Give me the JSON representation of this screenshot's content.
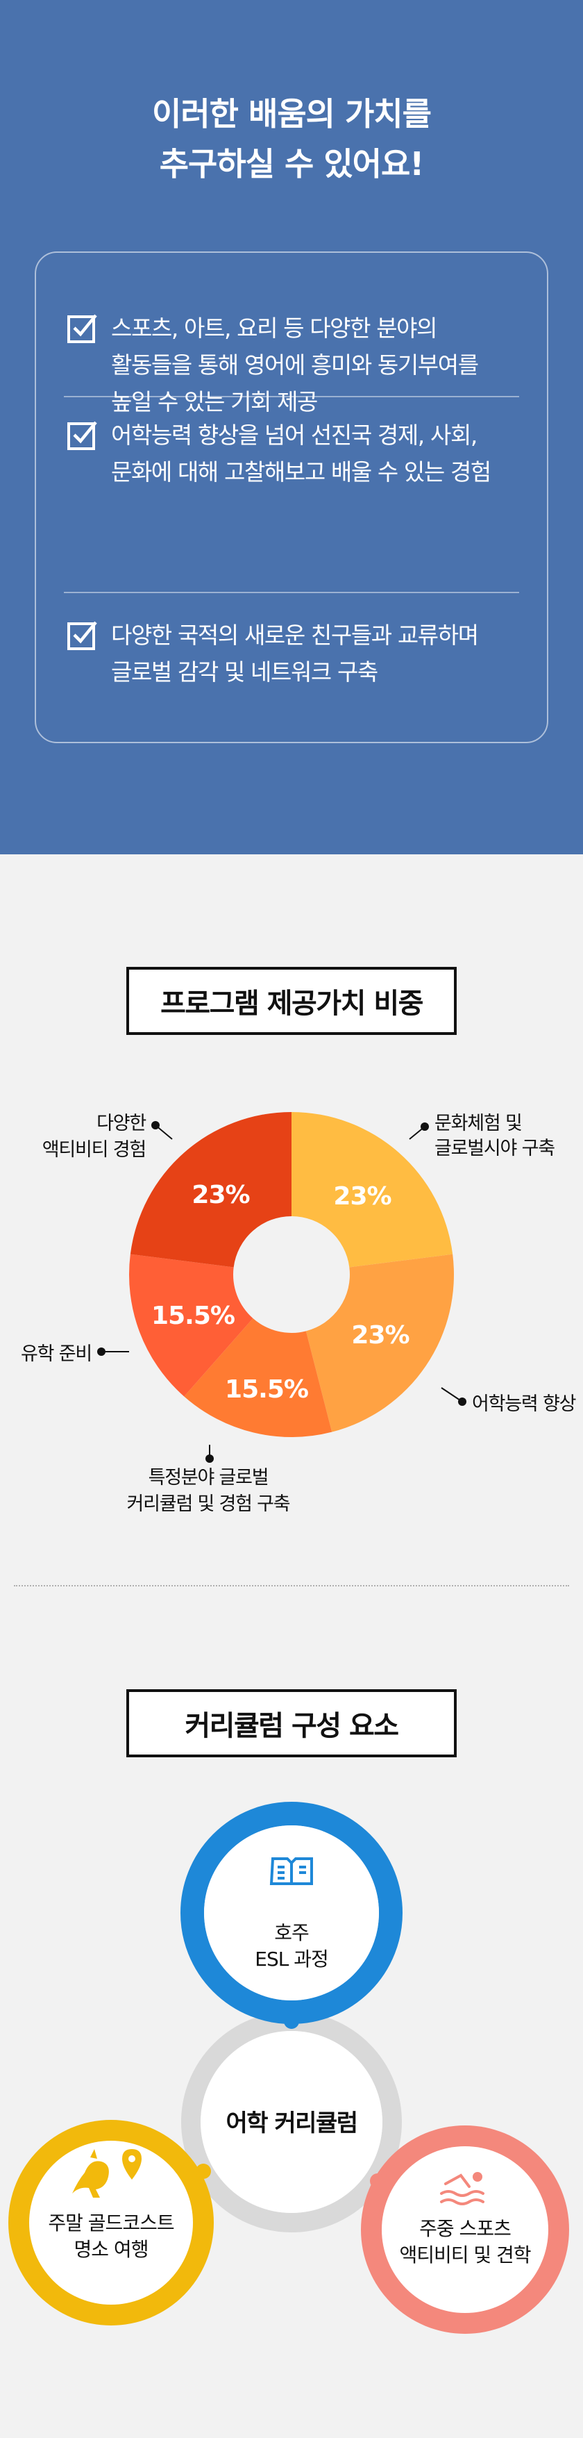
{
  "hero": {
    "line1_pre": "이러한 ",
    "line1_bold": "배움의 가치",
    "line1_post": "를",
    "line2": "추구하실 수 있어요!"
  },
  "values": [
    {
      "lines": [
        "스포츠, 아트, 요리 등 다양한 분야의",
        "활동들을 통해 영어에 흥미와 동기부여를",
        "높일 수 있는 기회 제공"
      ],
      "icon": "checkbox-icon"
    },
    {
      "lines": [
        "어학능력 향상을 넘어 선진국 경제, 사회,",
        "문화에 대해 고찰해보고 배울 수 있는 경험"
      ],
      "icon": "checkbox-icon"
    },
    {
      "lines": [
        "다양한 국적의 새로운 친구들과 교류하며",
        "글로벌 감각 및 네트워크 구축"
      ],
      "icon": "checkbox-icon"
    }
  ],
  "chart_section": {
    "title": "프로그램 제공가치 비중"
  },
  "chart_data": {
    "type": "pie",
    "donut": true,
    "categories": [
      "문화체험 및 글로벌시야 구축",
      "어학능력 향상",
      "특정분야 글로벌 커리큘럼 및 경험 구축",
      "유학 준비",
      "다양한 액티비티 경험"
    ],
    "values": [
      23,
      23,
      15.5,
      15.5,
      23
    ],
    "value_labels": [
      "23%",
      "23%",
      "15.5%",
      "15.5%",
      "23%"
    ],
    "colors": [
      "#ffbc42",
      "#ffa243",
      "#ff7b32",
      "#ff5f36",
      "#e64216"
    ],
    "legend_labels": [
      [
        "문화체험 및",
        "글로벌시야 구축"
      ],
      [
        "어학능력 향상"
      ],
      [
        "특정분야 글로벌",
        "커리큘럼 및 경험 구축"
      ],
      [
        "유학 준비"
      ],
      [
        "다양한",
        "액티비티 경험"
      ]
    ]
  },
  "curriculum": {
    "title": "커리큘럼 구성 요소",
    "center_label": "어학 커리큘럼",
    "items": [
      {
        "lines": [
          "호주",
          "ESL 과정"
        ],
        "color": "#1e88d8",
        "icon": "book-icon"
      },
      {
        "lines": [
          "주말 골드코스트",
          "명소 여행"
        ],
        "color": "#f2b90c",
        "icon": "kangaroo-location-icon"
      },
      {
        "lines": [
          "주중 스포츠",
          "액티비티 및 견학"
        ],
        "color": "#f4887c",
        "icon": "swimmer-icon"
      }
    ],
    "hub_color": "#d9d9d9"
  }
}
